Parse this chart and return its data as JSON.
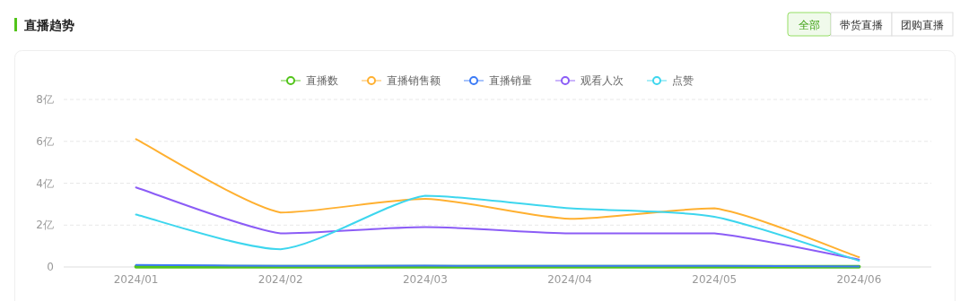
{
  "chart_data": {
    "type": "line",
    "title": "直播趋势",
    "annotations": [
      "全部",
      "带货直播",
      "团购直播"
    ],
    "categories": [
      "2024/01",
      "2024/02",
      "2024/03",
      "2024/04",
      "2024/05",
      "2024/06"
    ],
    "series": [
      {
        "name": "直播数",
        "color": "#52c41a",
        "values": [
          0.01,
          0.01,
          0.01,
          0.01,
          0.01,
          0.01
        ]
      },
      {
        "name": "直播销售额",
        "color": "#ffb030",
        "values": [
          6.1,
          2.6,
          3.25,
          2.3,
          2.8,
          0.47
        ]
      },
      {
        "name": "直播销量",
        "color": "#3b7bf6",
        "values": [
          0.1,
          0.05,
          0.06,
          0.05,
          0.05,
          0.02
        ]
      },
      {
        "name": "观看人次",
        "color": "#8b5cf6",
        "values": [
          3.8,
          1.6,
          1.9,
          1.6,
          1.6,
          0.35
        ]
      },
      {
        "name": "点赞",
        "color": "#3dd6ee",
        "values": [
          2.5,
          0.85,
          3.4,
          2.8,
          2.4,
          0.3
        ]
      }
    ],
    "ylim": [
      0,
      8
    ],
    "yticks": [
      0,
      {
        "value": 2,
        "label": "2亿"
      },
      {
        "value": 4,
        "label": "4亿"
      },
      {
        "value": 6,
        "label": "6亿"
      },
      {
        "value": 8,
        "label": "8亿"
      }
    ],
    "grid": "y",
    "legend": "top",
    "marker": "none",
    "line_style": "solid"
  }
}
